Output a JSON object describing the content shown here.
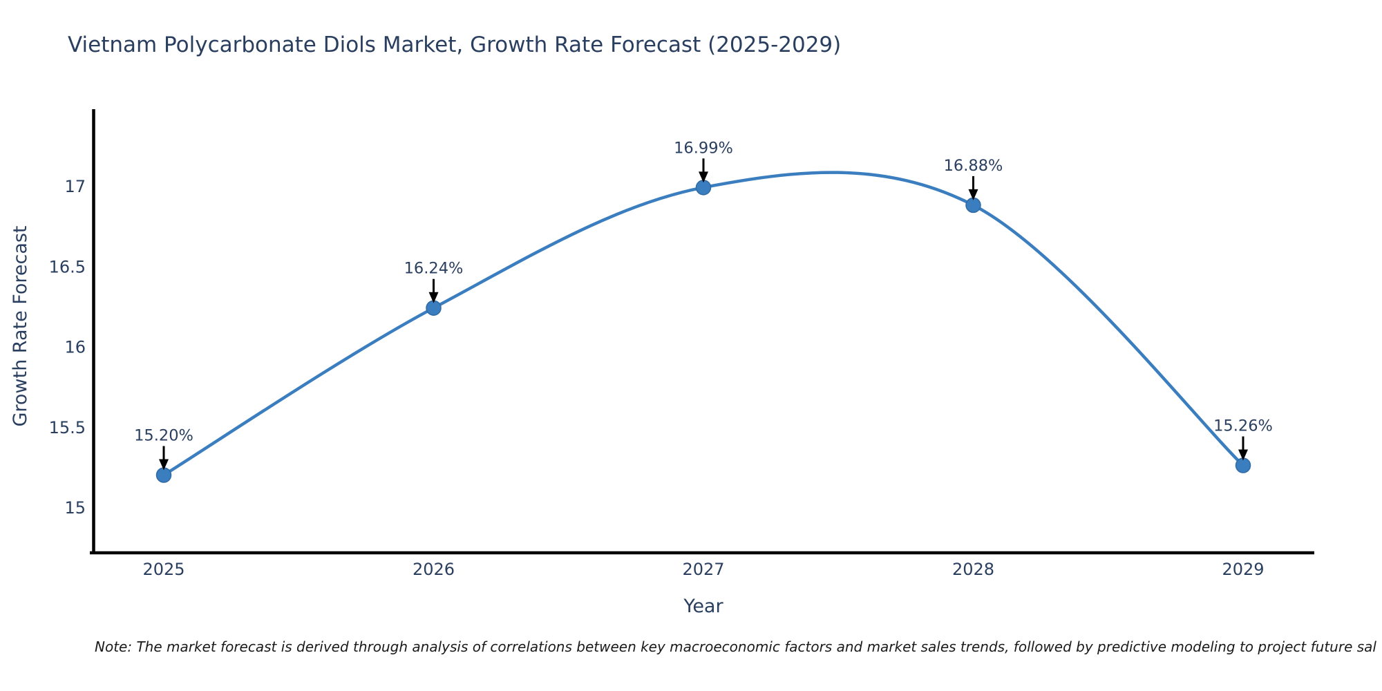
{
  "title": "Vietnam Polycarbonate Diols Market, Growth Rate Forecast (2025-2029)",
  "note": "Note: The market forecast is derived through analysis of correlations between key macroeconomic factors and market sales trends, followed by predictive modeling to project future sal",
  "colors": {
    "title_text": "#2a3f5f",
    "tick_text": "#2a3f5f",
    "annotation_text": "#2a3f5f",
    "note_text": "#1a1a1a",
    "line": "#3b7ec0",
    "marker": "#3b7ec0",
    "marker_edge": "#2f6aa3",
    "axis": "#000000",
    "arrow": "#000000",
    "background": "#ffffff"
  },
  "chart_data": {
    "type": "line",
    "title": "Vietnam Polycarbonate Diols Market, Growth Rate Forecast (2025-2029)",
    "xlabel": "Year",
    "ylabel": "Growth Rate Forecast",
    "x": [
      2025,
      2026,
      2027,
      2028,
      2029
    ],
    "values": [
      15.2,
      16.24,
      16.99,
      16.88,
      15.26
    ],
    "point_labels": [
      "15.20%",
      "16.24%",
      "16.99%",
      "16.88%",
      "15.26%"
    ],
    "xtick_labels": [
      "2025",
      "2026",
      "2027",
      "2028",
      "2029"
    ],
    "yticks": [
      15,
      15.5,
      16,
      16.5,
      17
    ],
    "ytick_labels": [
      "15",
      "15.5",
      "16",
      "16.5",
      "17"
    ],
    "ylim": [
      14.72,
      17.45
    ],
    "line_shape": "spline",
    "grid": false,
    "legend": "none",
    "point_annotations_have_arrows": true
  }
}
